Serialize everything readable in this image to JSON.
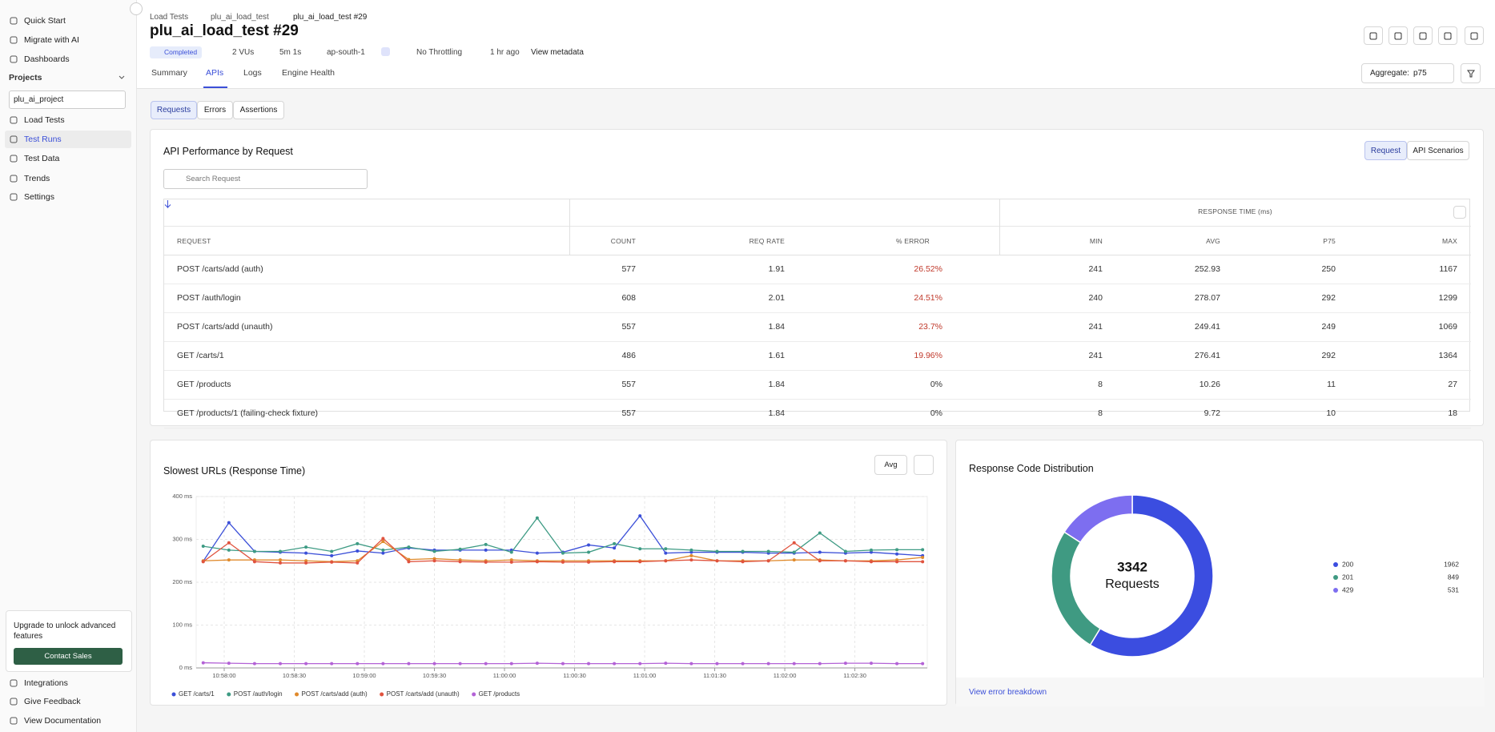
{
  "sidebar": {
    "top_nav": [
      "Quick Start",
      "Migrate with AI",
      "Dashboards"
    ],
    "projects_label": "Projects",
    "project_select": "plu_ai_project",
    "project_nav": [
      "Load Tests",
      "Test Runs",
      "Test Data",
      "Trends",
      "Settings"
    ],
    "upgrade_text": "Upgrade to unlock advanced features",
    "upgrade_button": "Contact Sales",
    "bottom_nav": [
      "Integrations",
      "Give Feedback",
      "View Documentation"
    ]
  },
  "breadcrumb": [
    "Load Tests",
    "plu_ai_load_test",
    "plu_ai_load_test #29"
  ],
  "header": {
    "title": "plu_ai_load_test #29",
    "status": "Completed",
    "vus": "2 VUs",
    "duration": "5m 1s",
    "region": "ap-south-1",
    "throttling": "No Throttling",
    "time": "1 hr ago",
    "metadata": "View metadata",
    "aggregate_label": "Aggregate:",
    "aggregate_value": "p75"
  },
  "tabs": [
    "Summary",
    "APIs",
    "Logs",
    "Engine Health"
  ],
  "subtabs": [
    "Requests",
    "Errors",
    "Assertions"
  ],
  "api_card": {
    "title": "API Performance by Request",
    "toggle": [
      "Request",
      "API Scenarios"
    ],
    "search_placeholder": "Search Request"
  },
  "table": {
    "group_header": "RESPONSE TIME (ms)",
    "columns": [
      "REQUEST",
      "COUNT",
      "REQ RATE",
      "% ERROR",
      "MIN",
      "AVG",
      "P75",
      "MAX"
    ],
    "rows": [
      [
        "POST /carts/add (auth)",
        "577",
        "1.91",
        "26.52%",
        "241",
        "252.93",
        "250",
        "1167"
      ],
      [
        "POST /auth/login",
        "608",
        "2.01",
        "24.51%",
        "240",
        "278.07",
        "292",
        "1299"
      ],
      [
        "POST /carts/add (unauth)",
        "557",
        "1.84",
        "23.7%",
        "241",
        "249.41",
        "249",
        "1069"
      ],
      [
        "GET /carts/1",
        "486",
        "1.61",
        "19.96%",
        "241",
        "276.41",
        "292",
        "1364"
      ],
      [
        "GET /products",
        "557",
        "1.84",
        "0%",
        "8",
        "10.26",
        "11",
        "27"
      ],
      [
        "GET /products/1 (failing-check fixture)",
        "557",
        "1.84",
        "0%",
        "8",
        "9.72",
        "10",
        "18"
      ]
    ]
  },
  "chart_data": [
    {
      "type": "line",
      "title": "Slowest URLs (Response Time)",
      "aggregate": "Avg",
      "grid": true,
      "x": [
        "10:57:51",
        "10:58:02",
        "10:58:13",
        "10:58:24",
        "10:58:35",
        "10:58:46",
        "10:58:57",
        "10:59:08",
        "10:59:19",
        "10:59:30",
        "10:59:41",
        "10:59:52",
        "11:00:03",
        "11:00:14",
        "11:00:25",
        "11:00:36",
        "11:00:47",
        "11:00:58",
        "11:01:09",
        "11:01:20",
        "11:01:31",
        "11:01:42",
        "11:01:53",
        "11:02:04",
        "11:02:15",
        "11:02:26",
        "11:02:37",
        "11:02:48",
        "11:02:59"
      ],
      "xlim": [
        "10:57:48",
        "11:03:01"
      ],
      "xticks": [
        "10:58:00",
        "10:58:30",
        "10:59:00",
        "10:59:30",
        "11:00:00",
        "11:00:30",
        "11:01:00",
        "11:01:30",
        "11:02:00",
        "11:02:30"
      ],
      "ylim": [
        0,
        400
      ],
      "yticks": [
        {
          "value": 0,
          "label": "0 ms"
        },
        {
          "value": 100,
          "label": "100 ms"
        },
        {
          "value": 200,
          "label": "200 ms"
        },
        {
          "value": 300,
          "label": "300 ms"
        },
        {
          "value": 400,
          "label": "400 ms"
        }
      ],
      "series": [
        {
          "name": "GET /carts/1",
          "color": "#3b4fd8",
          "values": [
            249,
            339,
            272,
            270,
            268,
            262,
            273,
            268,
            280,
            275,
            275,
            275,
            275,
            268,
            270,
            287,
            280,
            355,
            268,
            270,
            270,
            270,
            268,
            268,
            270,
            268,
            270,
            266,
            262
          ]
        },
        {
          "name": "POST /auth/login",
          "color": "#3e9b84",
          "values": [
            284,
            275,
            272,
            272,
            282,
            272,
            290,
            275,
            282,
            272,
            277,
            288,
            270,
            350,
            268,
            270,
            290,
            278,
            278,
            275,
            272,
            272,
            272,
            270,
            315,
            272,
            275,
            276,
            276
          ]
        },
        {
          "name": "POST /carts/add (auth)",
          "color": "#e08a2c",
          "values": [
            250,
            252,
            252,
            252,
            250,
            248,
            250,
            295,
            253,
            255,
            252,
            250,
            252,
            250,
            250,
            250,
            250,
            250,
            250,
            262,
            250,
            250,
            250,
            252,
            252,
            250,
            250,
            252,
            258
          ]
        },
        {
          "name": "POST /carts/add (unauth)",
          "color": "#e0533e",
          "values": [
            248,
            292,
            248,
            245,
            245,
            247,
            245,
            302,
            248,
            250,
            248,
            247,
            247,
            248,
            247,
            247,
            248,
            248,
            250,
            252,
            250,
            248,
            250,
            292,
            250,
            250,
            248,
            248,
            248
          ]
        },
        {
          "name": "GET /products",
          "color": "#b362d6",
          "values": [
            12,
            11,
            10,
            10,
            10,
            10,
            10,
            10,
            10,
            10,
            10,
            10,
            10,
            11,
            10,
            10,
            10,
            10,
            11,
            10,
            10,
            10,
            10,
            10,
            10,
            11,
            11,
            10,
            10
          ]
        }
      ]
    },
    {
      "type": "pie",
      "title": "Response Code Distribution",
      "total": 3342,
      "total_label": "Requests",
      "categories": [
        "200",
        "201",
        "429"
      ],
      "values": [
        1962,
        849,
        531
      ],
      "colors": [
        "#3b4de0",
        "#3f9a82",
        "#7d6ef0"
      ]
    }
  ],
  "error_link": "View error breakdown"
}
